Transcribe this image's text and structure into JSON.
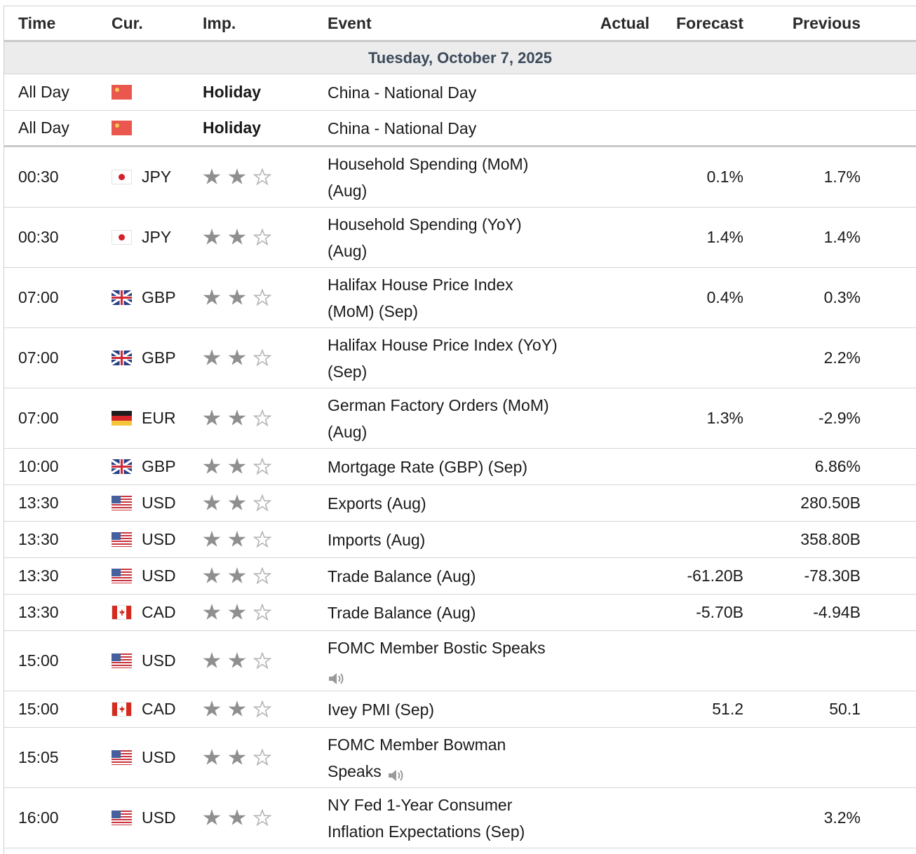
{
  "headers": {
    "time": "Time",
    "currency": "Cur.",
    "importance": "Imp.",
    "event": "Event",
    "actual": "Actual",
    "forecast": "Forecast",
    "previous": "Previous"
  },
  "date_label": "Tuesday, October 7, 2025",
  "holidays": [
    {
      "time": "All Day",
      "flag": "china-flag-icon",
      "importance": "Holiday",
      "event": "China - National Day"
    },
    {
      "time": "All Day",
      "flag": "china-flag-icon",
      "importance": "Holiday",
      "event": "China - National Day"
    }
  ],
  "importance_stars": 2,
  "events": [
    {
      "time": "00:30",
      "flag": "japan-flag-icon",
      "currency": "JPY",
      "event_line1": "Household Spending (MoM)",
      "event_line2": "(Aug)",
      "actual": "",
      "forecast": "0.1%",
      "previous": "1.7%"
    },
    {
      "time": "00:30",
      "flag": "japan-flag-icon",
      "currency": "JPY",
      "event_line1": "Household Spending (YoY)",
      "event_line2": "(Aug)",
      "actual": "",
      "forecast": "1.4%",
      "previous": "1.4%"
    },
    {
      "time": "07:00",
      "flag": "uk-flag-icon",
      "currency": "GBP",
      "event_line1": "Halifax House Price Index",
      "event_line2": "(MoM) (Sep)",
      "actual": "",
      "forecast": "0.4%",
      "previous": "0.3%"
    },
    {
      "time": "07:00",
      "flag": "uk-flag-icon",
      "currency": "GBP",
      "event_line1": "Halifax House Price Index (YoY)",
      "event_line2": "(Sep)",
      "actual": "",
      "forecast": "",
      "previous": "2.2%"
    },
    {
      "time": "07:00",
      "flag": "germany-flag-icon",
      "currency": "EUR",
      "event_line1": "German Factory Orders (MoM)",
      "event_line2": "(Aug)",
      "actual": "",
      "forecast": "1.3%",
      "previous": "-2.9%"
    },
    {
      "time": "10:00",
      "flag": "uk-flag-icon",
      "currency": "GBP",
      "event_line1": "Mortgage Rate (GBP) (Sep)",
      "event_line2": "",
      "actual": "",
      "forecast": "",
      "previous": "6.86%"
    },
    {
      "time": "13:30",
      "flag": "usa-flag-icon",
      "currency": "USD",
      "event_line1": "Exports (Aug)",
      "event_line2": "",
      "actual": "",
      "forecast": "",
      "previous": "280.50B"
    },
    {
      "time": "13:30",
      "flag": "usa-flag-icon",
      "currency": "USD",
      "event_line1": "Imports (Aug)",
      "event_line2": "",
      "actual": "",
      "forecast": "",
      "previous": "358.80B"
    },
    {
      "time": "13:30",
      "flag": "usa-flag-icon",
      "currency": "USD",
      "event_line1": "Trade Balance (Aug)",
      "event_line2": "",
      "actual": "",
      "forecast": "-61.20B",
      "previous": "-78.30B"
    },
    {
      "time": "13:30",
      "flag": "canada-flag-icon",
      "currency": "CAD",
      "event_line1": "Trade Balance (Aug)",
      "event_line2": "",
      "actual": "",
      "forecast": "-5.70B",
      "previous": "-4.94B"
    },
    {
      "time": "15:00",
      "flag": "usa-flag-icon",
      "currency": "USD",
      "event_line1": "FOMC Member Bostic Speaks",
      "event_line2": "",
      "speaker_icon": "line2",
      "actual": "",
      "forecast": "",
      "previous": ""
    },
    {
      "time": "15:00",
      "flag": "canada-flag-icon",
      "currency": "CAD",
      "event_line1": "Ivey PMI (Sep)",
      "event_line2": "",
      "actual": "",
      "forecast": "51.2",
      "previous": "50.1"
    },
    {
      "time": "15:05",
      "flag": "usa-flag-icon",
      "currency": "USD",
      "event_line1": "FOMC Member Bowman",
      "event_line2": "Speaks",
      "speaker_icon": "inline",
      "actual": "",
      "forecast": "",
      "previous": ""
    },
    {
      "time": "16:00",
      "flag": "usa-flag-icon",
      "currency": "USD",
      "event_line1": "NY Fed 1-Year Consumer",
      "event_line2": "Inflation Expectations (Sep)",
      "actual": "",
      "forecast": "",
      "previous": "3.2%"
    }
  ]
}
